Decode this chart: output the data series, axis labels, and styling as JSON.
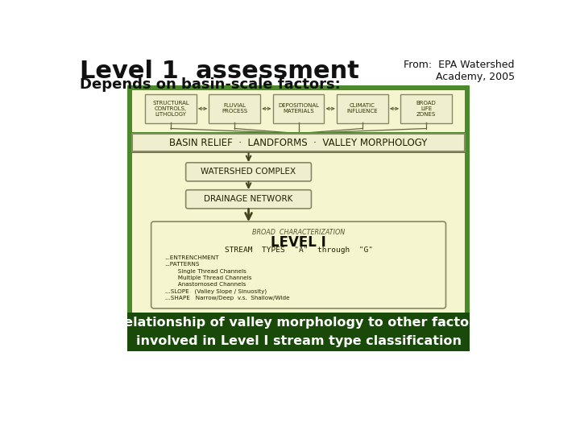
{
  "title": "Level 1  assessment",
  "title_fontsize": 22,
  "subtitle": "Depends on basin-scale factors:",
  "subtitle_fontsize": 13,
  "source_text": "From:  EPA Watershed\nAcademy, 2005",
  "source_fontsize": 9,
  "bg_color": "#ffffff",
  "green_border_color": "#2d6a1f",
  "light_green_bg": "#4a8a2a",
  "cream_bg": "#f5f5d0",
  "inner_cream": "#f0f0c8",
  "dark_green_footer_bg": "#1a4a0a",
  "footer_text": "Relationship of valley morphology to other factors\ninvolved in Level I stream type classification",
  "footer_fontsize": 11.5,
  "top_boxes": [
    {
      "label": "STRUCTURAL\nCONTROLS,\nLITHOLOGY"
    },
    {
      "label": "FLUVIAL\nPROCESS"
    },
    {
      "label": "DEPOSITIONAL\nMATERIALS"
    },
    {
      "label": "CLIMATIC\nINFLUENCE"
    },
    {
      "label": "BROAD\nLIFE\nZONES"
    }
  ],
  "main_box_text": "BASIN RELIEF  ·  LANDFORMS  ·  VALLEY MORPHOLOGY",
  "watershed_box_text": "WATERSHED COMPLEX",
  "drainage_box_text": "DRAINAGE NETWORK",
  "level_box_title": "BROAD  CHARACTERIZATION",
  "level_box_level": "LEVEL I",
  "level_box_stream": "STREAM  TYPES  \"A\"  through  \"G\"",
  "level_box_lines": [
    "...ENTRENCHMENT",
    "...PATTERNS",
    "       Single Thread Channels",
    "       Multiple Thread Channels",
    "       Anastomosed Channels",
    "...SLOPE   (Valley Slope / Sinuosity)",
    "...SHAPE   Narrow/Deep  v.s.  Shallow/Wide"
  ]
}
